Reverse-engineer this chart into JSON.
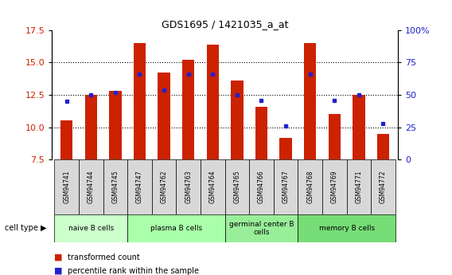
{
  "title": "GDS1695 / 1421035_a_at",
  "samples": [
    "GSM94741",
    "GSM94744",
    "GSM94745",
    "GSM94747",
    "GSM94762",
    "GSM94763",
    "GSM94764",
    "GSM94765",
    "GSM94766",
    "GSM94767",
    "GSM94768",
    "GSM94769",
    "GSM94771",
    "GSM94772"
  ],
  "transformed_count": [
    10.5,
    12.5,
    12.8,
    16.5,
    14.2,
    15.2,
    16.4,
    13.6,
    11.6,
    9.2,
    16.5,
    11.0,
    12.5,
    9.5
  ],
  "percentile_rank": [
    45,
    50,
    52,
    66,
    54,
    66,
    66,
    50,
    46,
    26,
    66,
    46,
    50,
    28
  ],
  "ylim_left": [
    7.5,
    17.5
  ],
  "ylim_right": [
    0,
    100
  ],
  "yticks_left": [
    7.5,
    10.0,
    12.5,
    15.0,
    17.5
  ],
  "yticks_right": [
    0,
    25,
    50,
    75,
    100
  ],
  "bar_color": "#CC2200",
  "dot_color": "#2222CC",
  "cell_type_groups": [
    {
      "label": "naive B cells",
      "start": 0,
      "end": 3,
      "color": "#ccffcc"
    },
    {
      "label": "plasma B cells",
      "start": 3,
      "end": 7,
      "color": "#aaffaa"
    },
    {
      "label": "germinal center B\ncells",
      "start": 7,
      "end": 10,
      "color": "#99ee99"
    },
    {
      "label": "memory B cells",
      "start": 10,
      "end": 14,
      "color": "#77dd77"
    }
  ],
  "cell_type_label": "cell type",
  "legend_bar_label": "transformed count",
  "legend_dot_label": "percentile rank within the sample",
  "bar_bottom": 7.5,
  "group_fill": [
    "#ccffcc",
    "#aaffaa",
    "#99ee99",
    "#77dd77"
  ]
}
